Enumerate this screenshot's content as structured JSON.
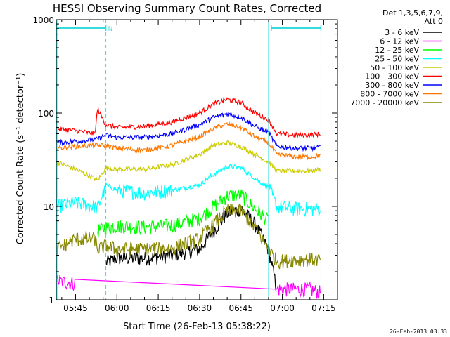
{
  "chart_data": {
    "type": "line",
    "title": "HESSI Observing Summary Count Rates, Corrected",
    "xlabel": "Start Time (26-Feb-13 05:38:22)",
    "ylabel": "Corrected Count Rate (s⁻¹ detector⁻¹)",
    "ylog": true,
    "ylim": [
      1,
      1000
    ],
    "xlim_minutes": [
      "05:38",
      "07:20"
    ],
    "x_ticks": [
      "05:45",
      "06:00",
      "06:15",
      "06:30",
      "06:45",
      "07:00",
      "07:15"
    ],
    "y_ticks": [
      "1",
      "10",
      "100",
      "1000"
    ],
    "legend_header": [
      "Det 1,3,5,6,7,9,",
      "Att 0"
    ],
    "legend_position": "right",
    "footer_date": "26-Feb-2013 03:33",
    "flags": {
      "night_label": "N",
      "night_bars": [
        [
          "05:38",
          "05:56"
        ],
        [
          "06:56",
          "07:14"
        ]
      ],
      "color": "#33dddd"
    },
    "vertical_markers": [
      "05:56",
      "06:55",
      "07:14"
    ],
    "x_times": [
      "05:38",
      "05:45",
      "05:52",
      "05:53",
      "05:56",
      "06:00",
      "06:10",
      "06:20",
      "06:30",
      "06:35",
      "06:40",
      "06:45",
      "06:50",
      "06:55",
      "06:58",
      "07:05",
      "07:10",
      "07:14"
    ],
    "series": [
      {
        "name": "3 - 6 keV",
        "color": "#000000",
        "values": [
          null,
          null,
          null,
          null,
          2.5,
          2.8,
          2.8,
          3.0,
          3.5,
          5.5,
          8.5,
          9.5,
          6.5,
          3.5,
          1.3,
          null,
          null,
          null
        ]
      },
      {
        "name": "6 - 12 keV",
        "color": "#ff00ff",
        "values": [
          1.6,
          1.5,
          null,
          null,
          null,
          null,
          null,
          null,
          null,
          null,
          null,
          null,
          null,
          null,
          1.3,
          1.3,
          1.3,
          1.2
        ]
      },
      {
        "name": "12 - 25 keV",
        "color": "#00ff00",
        "values": [
          null,
          null,
          null,
          5.5,
          6.0,
          6.2,
          6.0,
          6.3,
          7.5,
          10,
          13,
          13.5,
          9.5,
          7.0,
          null,
          null,
          null,
          null
        ]
      },
      {
        "name": "25 - 50 keV",
        "color": "#00ffff",
        "values": [
          10,
          11,
          10,
          9.5,
          17,
          15,
          14,
          15,
          17,
          22,
          27,
          26,
          20,
          16,
          10,
          9.5,
          9.5,
          9.5
        ]
      },
      {
        "name": "50 - 100 keV",
        "color": "#cccc00",
        "values": [
          30,
          25,
          20,
          19,
          26,
          25,
          25,
          28,
          36,
          45,
          48,
          44,
          36,
          30,
          24,
          24,
          24,
          25
        ]
      },
      {
        "name": "100 - 300 keV",
        "color": "#ff0000",
        "values": [
          68,
          65,
          60,
          110,
          75,
          70,
          72,
          80,
          100,
          125,
          140,
          130,
          100,
          85,
          60,
          58,
          58,
          60
        ]
      },
      {
        "name": "300 - 800 keV",
        "color": "#0000ff",
        "values": [
          48,
          50,
          52,
          53,
          58,
          55,
          55,
          60,
          75,
          90,
          98,
          90,
          72,
          62,
          44,
          42,
          42,
          43
        ]
      },
      {
        "name": "800 - 7000 keV",
        "color": "#ff7700",
        "values": [
          42,
          44,
          45,
          45,
          45,
          42,
          40,
          45,
          56,
          68,
          76,
          70,
          56,
          48,
          36,
          34,
          34,
          35
        ]
      },
      {
        "name": "7000 - 20000 keV",
        "color": "#888800",
        "values": [
          3.5,
          4.5,
          4.5,
          3.5,
          3.8,
          3.5,
          3.5,
          3.6,
          4.5,
          6.5,
          9.0,
          9.0,
          6.0,
          3.5,
          2.6,
          2.7,
          2.7,
          2.7
        ]
      }
    ]
  }
}
